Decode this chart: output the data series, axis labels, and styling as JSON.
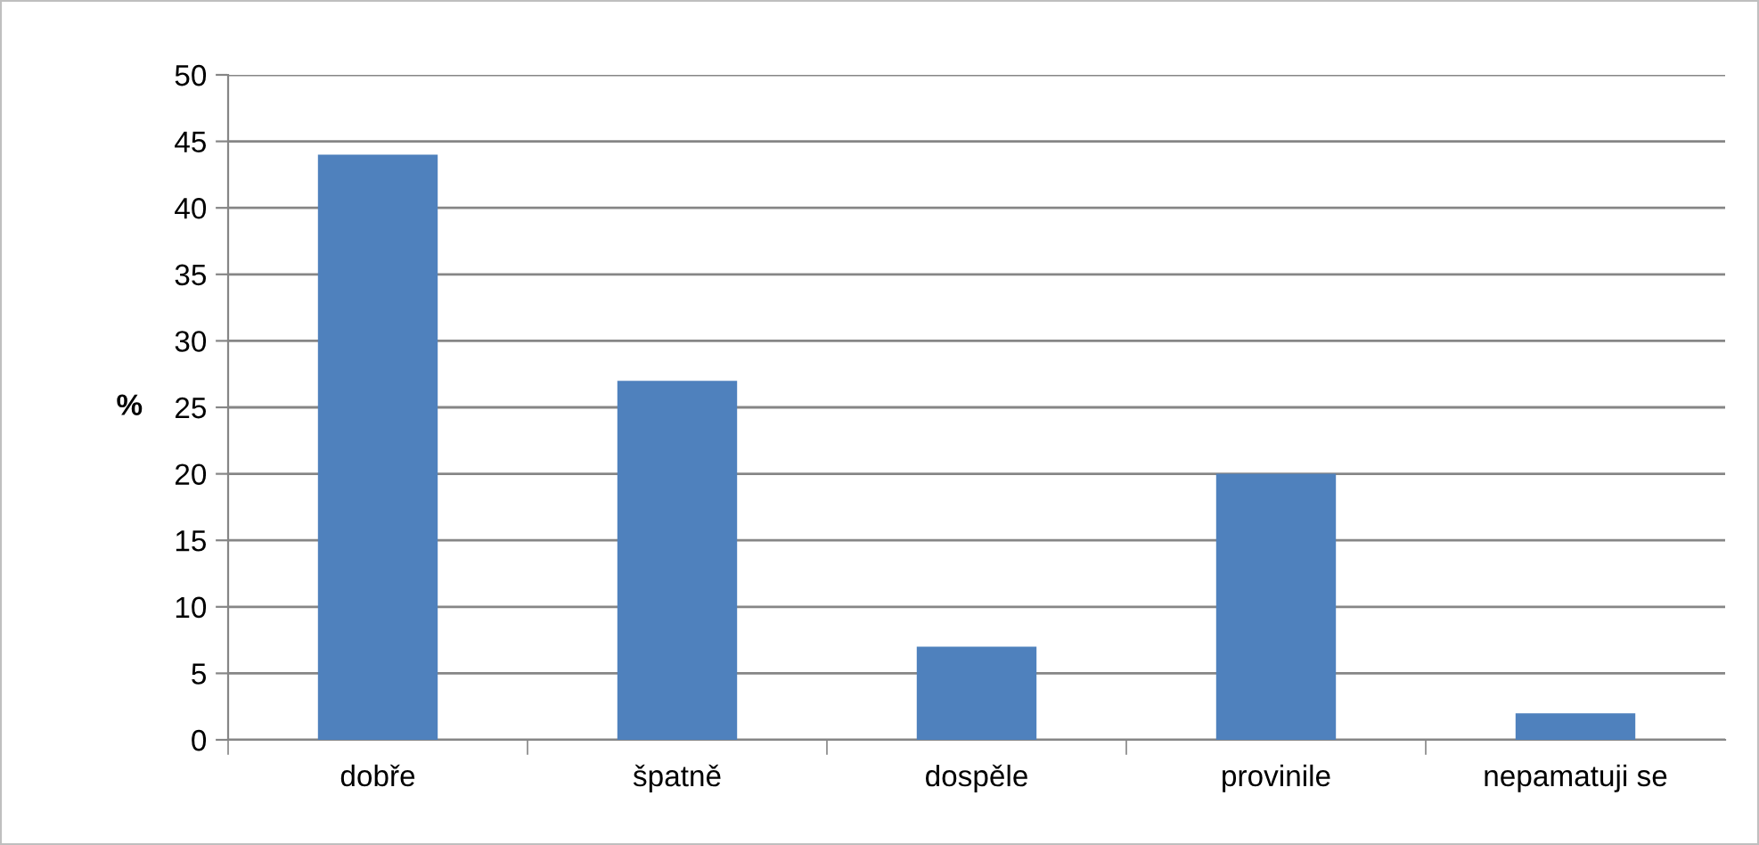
{
  "chart_data": {
    "type": "bar",
    "ylabel": "%",
    "categories": [
      "dobře",
      "špatně",
      "dospěle",
      "provinile",
      "nepamatuji se"
    ],
    "values": [
      44,
      27,
      7,
      20,
      2
    ],
    "color": "#4f81bd",
    "ylim": [
      0,
      50
    ],
    "yticks": [
      0,
      5,
      10,
      15,
      20,
      25,
      30,
      35,
      40,
      45,
      50
    ],
    "grid": "y",
    "legend": false
  }
}
